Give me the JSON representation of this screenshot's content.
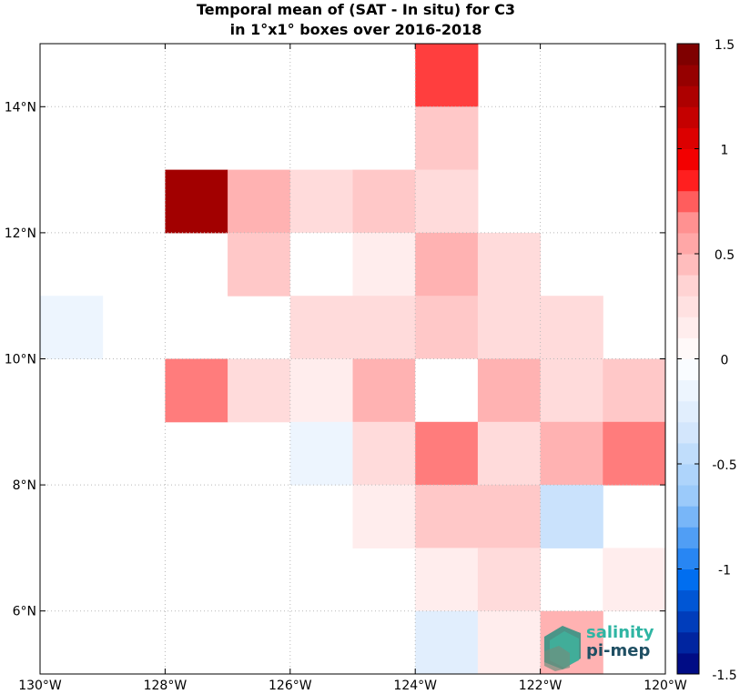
{
  "title": {
    "line1": "Temporal mean of (SAT - In situ) for C3",
    "line2": "in 1°x1° boxes over 2016-2018"
  },
  "logo": {
    "line1": "salinity",
    "line2": "pi-mep"
  },
  "chart_data": {
    "type": "heatmap",
    "title": "Temporal mean of (SAT - In situ) for C3 in 1°x1° boxes over 2016-2018",
    "xlim": [
      -130,
      -120
    ],
    "ylim": [
      5,
      15
    ],
    "x_ticks": [
      -130,
      -128,
      -126,
      -124,
      -122,
      -120
    ],
    "x_tick_labels": [
      "130°W",
      "128°W",
      "126°W",
      "124°W",
      "122°W",
      "120°W"
    ],
    "y_ticks": [
      6,
      8,
      10,
      12,
      14
    ],
    "y_tick_labels": [
      "6°N",
      "8°N",
      "10°N",
      "12°N",
      "14°N"
    ],
    "grid": true,
    "colorbar": {
      "range": [
        -1.5,
        1.5
      ],
      "levels": 30,
      "ticks": [
        -1.5,
        -1,
        -0.5,
        0,
        0.5,
        1,
        1.5
      ],
      "tick_labels": [
        "-1.5",
        "-1",
        "-0.5",
        "0",
        "0.5",
        "1",
        "1.5"
      ]
    },
    "cells": [
      {
        "lon": -124,
        "lat": 14,
        "value": 0.8
      },
      {
        "lon": -124,
        "lat": 13,
        "value": 0.4
      },
      {
        "lon": -128,
        "lat": 12,
        "value": 1.3
      },
      {
        "lon": -127,
        "lat": 12,
        "value": 0.5
      },
      {
        "lon": -126,
        "lat": 12,
        "value": 0.3
      },
      {
        "lon": -125,
        "lat": 12,
        "value": 0.4
      },
      {
        "lon": -124,
        "lat": 12,
        "value": 0.3
      },
      {
        "lon": -127,
        "lat": 11,
        "value": 0.4
      },
      {
        "lon": -126,
        "lat": 11,
        "value": 0.0
      },
      {
        "lon": -125,
        "lat": 11,
        "value": 0.15
      },
      {
        "lon": -124,
        "lat": 11,
        "value": 0.5
      },
      {
        "lon": -123,
        "lat": 11,
        "value": 0.3
      },
      {
        "lon": -130,
        "lat": 10,
        "value": -0.15
      },
      {
        "lon": -126,
        "lat": 10,
        "value": 0.3
      },
      {
        "lon": -125,
        "lat": 10,
        "value": 0.3
      },
      {
        "lon": -124,
        "lat": 10,
        "value": 0.4
      },
      {
        "lon": -123,
        "lat": 10,
        "value": 0.3
      },
      {
        "lon": -122,
        "lat": 10,
        "value": 0.3
      },
      {
        "lon": -128,
        "lat": 9,
        "value": 0.7
      },
      {
        "lon": -127,
        "lat": 9,
        "value": 0.3
      },
      {
        "lon": -126,
        "lat": 9,
        "value": 0.15
      },
      {
        "lon": -125,
        "lat": 9,
        "value": 0.5
      },
      {
        "lon": -124,
        "lat": 9,
        "value": 0.0
      },
      {
        "lon": -123,
        "lat": 9,
        "value": 0.5
      },
      {
        "lon": -122,
        "lat": 9,
        "value": 0.3
      },
      {
        "lon": -121,
        "lat": 9,
        "value": 0.4
      },
      {
        "lon": -126,
        "lat": 8,
        "value": -0.15
      },
      {
        "lon": -125,
        "lat": 8,
        "value": 0.3
      },
      {
        "lon": -124,
        "lat": 8,
        "value": 0.7
      },
      {
        "lon": -123,
        "lat": 8,
        "value": 0.3
      },
      {
        "lon": -122,
        "lat": 8,
        "value": 0.5
      },
      {
        "lon": -121,
        "lat": 8,
        "value": 0.7
      },
      {
        "lon": -125,
        "lat": 7,
        "value": 0.15
      },
      {
        "lon": -124,
        "lat": 7,
        "value": 0.4
      },
      {
        "lon": -123,
        "lat": 7,
        "value": 0.4
      },
      {
        "lon": -122,
        "lat": 7,
        "value": -0.4
      },
      {
        "lon": -124,
        "lat": 6,
        "value": 0.15
      },
      {
        "lon": -123,
        "lat": 6,
        "value": 0.3
      },
      {
        "lon": -121,
        "lat": 6,
        "value": 0.15
      },
      {
        "lon": -124,
        "lat": 5,
        "value": -0.25
      },
      {
        "lon": -123,
        "lat": 5,
        "value": 0.15
      },
      {
        "lon": -122,
        "lat": 5,
        "value": 0.5
      }
    ]
  }
}
